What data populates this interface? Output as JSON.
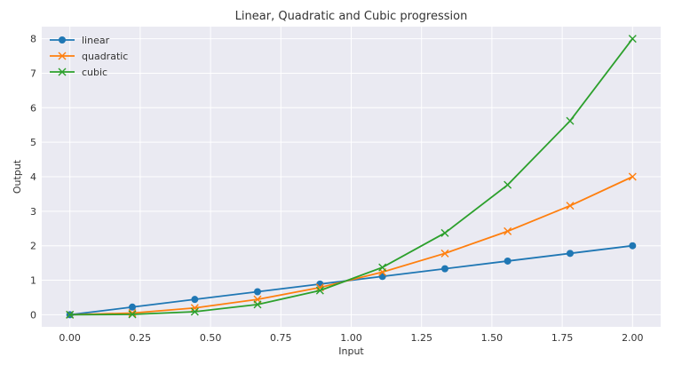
{
  "chart_data": {
    "type": "line",
    "title": "Linear, Quadratic and Cubic progression",
    "xlabel": "Input",
    "ylabel": "Output",
    "xlim": [
      -0.1,
      2.1
    ],
    "ylim": [
      -0.35,
      8.35
    ],
    "xticks": [
      0.0,
      0.25,
      0.5,
      0.75,
      1.0,
      1.25,
      1.5,
      1.75,
      2.0
    ],
    "xtick_labels": [
      "0.00",
      "0.25",
      "0.50",
      "0.75",
      "1.00",
      "1.25",
      "1.50",
      "1.75",
      "2.00"
    ],
    "yticks": [
      0,
      1,
      2,
      3,
      4,
      5,
      6,
      7,
      8
    ],
    "ytick_labels": [
      "0",
      "1",
      "2",
      "3",
      "4",
      "5",
      "6",
      "7",
      "8"
    ],
    "grid": true,
    "legend_position": "top-left",
    "background": "#eaeaf2",
    "x": [
      0.0,
      0.222,
      0.444,
      0.667,
      0.889,
      1.111,
      1.333,
      1.556,
      1.778,
      2.0
    ],
    "series": [
      {
        "name": "linear",
        "color": "#1f77b4",
        "marker": "o",
        "values": [
          0.0,
          0.222,
          0.444,
          0.667,
          0.889,
          1.111,
          1.333,
          1.556,
          1.778,
          2.0
        ]
      },
      {
        "name": "quadratic",
        "color": "#ff7f0e",
        "marker": "x",
        "values": [
          0.0,
          0.049,
          0.198,
          0.444,
          0.79,
          1.235,
          1.778,
          2.42,
          3.16,
          4.0
        ]
      },
      {
        "name": "cubic",
        "color": "#2ca02c",
        "marker": "x",
        "values": [
          0.0,
          0.011,
          0.088,
          0.296,
          0.702,
          1.372,
          2.37,
          3.764,
          5.619,
          8.0
        ]
      }
    ]
  }
}
